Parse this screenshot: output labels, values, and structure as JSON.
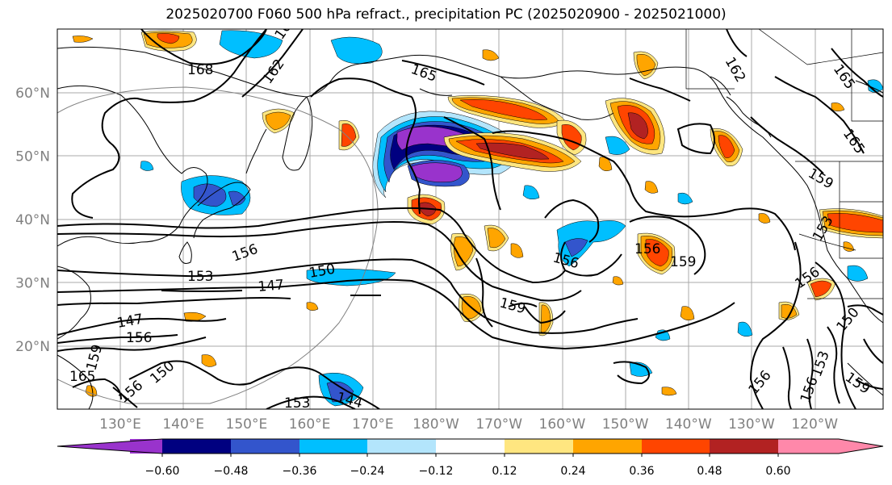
{
  "title": "2025020700 F060 500 hPa refract., precipitation PC (2025020900 - 2025021000)",
  "lat_labels": [
    {
      "text": "60°N",
      "lat": 60
    },
    {
      "text": "50°N",
      "lat": 50
    },
    {
      "text": "40°N",
      "lat": 40
    },
    {
      "text": "30°N",
      "lat": 30
    },
    {
      "text": "20°N",
      "lat": 20
    }
  ],
  "lon_labels": [
    "130°E",
    "140°E",
    "150°E",
    "160°E",
    "170°E",
    "180°W",
    "170°W",
    "160°W",
    "150°W",
    "140°W",
    "130°W",
    "120°W"
  ],
  "colorbar": {
    "ticks": [
      "−0.60",
      "−0.48",
      "−0.36",
      "−0.24",
      "−0.12",
      "0.12",
      "0.24",
      "0.36",
      "0.48",
      "0.60"
    ],
    "colors": [
      "#9933cc",
      "#000080",
      "#3355cc",
      "#00bfff",
      "#b3e5fc",
      "#ffffff",
      "#ffe680",
      "#ffa500",
      "#ff4500",
      "#b22222",
      "#ff88aa"
    ]
  },
  "contour_labels": [
    {
      "text": "168"
    },
    {
      "text": "162"
    },
    {
      "text": "165"
    },
    {
      "text": "165"
    },
    {
      "text": "162"
    },
    {
      "text": "165"
    },
    {
      "text": "165"
    },
    {
      "text": "159"
    },
    {
      "text": "156"
    },
    {
      "text": "153"
    },
    {
      "text": "150"
    },
    {
      "text": "147"
    },
    {
      "text": "147"
    },
    {
      "text": "156"
    },
    {
      "text": "159"
    },
    {
      "text": "165"
    },
    {
      "text": "150"
    },
    {
      "text": "156"
    },
    {
      "text": "153"
    },
    {
      "text": "144"
    },
    {
      "text": "159"
    },
    {
      "text": "156"
    },
    {
      "text": "159"
    },
    {
      "text": "156"
    },
    {
      "text": "153"
    },
    {
      "text": "156"
    },
    {
      "text": "150"
    },
    {
      "text": "156"
    },
    {
      "text": "153"
    },
    {
      "text": "156"
    },
    {
      "text": "159"
    }
  ]
}
